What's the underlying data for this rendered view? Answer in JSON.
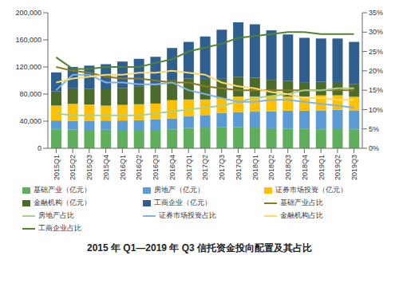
{
  "chart_data": {
    "type": "bar",
    "title": "2015 年 Q1—2019 年 Q3 信托资金投向配置及其占比",
    "stacked": true,
    "grid": false,
    "legend": "bottom",
    "categories": [
      "2015Q1",
      "2015Q2",
      "2015Q3",
      "2015Q4",
      "2016Q1",
      "2016Q2",
      "2016Q3",
      "2016Q4",
      "2017Q1",
      "2017Q2",
      "2017Q3",
      "2017Q4",
      "2018Q1",
      "2018Q2",
      "2018Q3",
      "2018Q4",
      "2019Q1",
      "2019Q2",
      "2019Q3"
    ],
    "ylim": [
      0,
      200000
    ],
    "yticks": [
      0,
      {
        "value": 40000,
        "label": "40,000"
      },
      {
        "value": 80000,
        "label": "80,000"
      },
      {
        "value": 120000,
        "label": "120,000"
      },
      {
        "value": 160000,
        "label": "160,000"
      },
      {
        "value": 200000,
        "label": "200,000"
      }
    ],
    "y2lim": [
      0,
      35
    ],
    "y2ticks": [
      {
        "value": 0,
        "label": "0%"
      },
      {
        "value": 5,
        "label": "5%"
      },
      {
        "value": 10,
        "label": "10%"
      },
      {
        "value": 15,
        "label": "15%"
      },
      {
        "value": 20,
        "label": "20%"
      },
      {
        "value": 25,
        "label": "25%"
      },
      {
        "value": 30,
        "label": "30%"
      },
      {
        "value": 35,
        "label": "35%"
      }
    ],
    "series": [
      {
        "name": "基础产业（亿元）",
        "type": "bar",
        "color": "#5fae5c",
        "values": [
          28000,
          27500,
          27000,
          27500,
          27000,
          27000,
          27000,
          28000,
          30000,
          30500,
          31500,
          31000,
          30500,
          29500,
          29000,
          28500,
          28000,
          28200,
          28000
        ]
      },
      {
        "name": "房地产（亿元）",
        "type": "bar",
        "color": "#5b9bd5",
        "values": [
          13000,
          13000,
          13000,
          13500,
          14000,
          14500,
          15500,
          16000,
          17000,
          18500,
          20500,
          22500,
          23500,
          25000,
          26500,
          27000,
          28000,
          28500,
          28000
        ]
      },
      {
        "name": "证券市场投资（亿元）",
        "type": "bar",
        "color": "#ffc000",
        "values": [
          22000,
          25000,
          24500,
          22000,
          23000,
          23500,
          23500,
          27000,
          25000,
          23000,
          22000,
          23000,
          22500,
          22000,
          21000,
          21000,
          22000,
          21500,
          20000
        ]
      },
      {
        "name": "金融机构（亿元）",
        "type": "bar",
        "color": "#4b6b2c",
        "values": [
          21000,
          23000,
          23000,
          24000,
          25000,
          26500,
          27500,
          30000,
          31000,
          30500,
          28500,
          29000,
          27500,
          24500,
          23000,
          21000,
          20000,
          19500,
          19000
        ]
      },
      {
        "name": "工商企业（亿元）",
        "type": "bar",
        "color": "#2f5f8f",
        "values": [
          28000,
          31500,
          34500,
          37000,
          39000,
          40500,
          41500,
          47000,
          54000,
          62500,
          72500,
          80500,
          79000,
          73000,
          68500,
          65500,
          64000,
          64300,
          62000
        ]
      },
      {
        "name": "基础产业占比",
        "type": "line",
        "axis": "y2",
        "color": "#8c7a1f",
        "values": [
          21,
          20,
          19.5,
          18.5,
          18,
          18,
          17.5,
          17,
          17,
          16,
          15.5,
          15,
          15,
          15,
          15,
          15,
          15,
          15,
          15
        ]
      },
      {
        "name": "房地产占比",
        "type": "line",
        "axis": "y2",
        "color": "#a9d18e",
        "values": [
          9,
          8.5,
          8.5,
          8.5,
          8.5,
          8.5,
          9,
          9.5,
          10,
          10.5,
          11,
          12,
          13,
          13.5,
          14,
          15,
          15,
          15.5,
          15.5
        ]
      },
      {
        "name": "证券市场投资占比",
        "type": "line",
        "axis": "y2",
        "color": "#7fb2e5",
        "values": [
          15,
          19,
          19,
          17,
          17,
          16.5,
          16.5,
          17,
          15,
          14,
          13,
          12,
          12,
          12.5,
          12.5,
          12,
          11.5,
          11,
          10.5
        ]
      },
      {
        "name": "金融机构占比",
        "type": "line",
        "axis": "y2",
        "color": "#ffd966",
        "values": [
          17,
          18,
          18.5,
          19,
          19,
          19.5,
          19.5,
          20,
          19.5,
          19,
          17,
          16,
          15.5,
          14.5,
          14,
          13,
          13,
          12.5,
          12.5
        ]
      },
      {
        "name": "工商企业占比",
        "type": "line",
        "axis": "y2",
        "color": "#548235",
        "values": [
          23.5,
          20.5,
          20.5,
          21,
          21,
          21,
          22,
          23,
          25,
          26,
          27,
          28.5,
          29,
          29.5,
          30,
          30,
          29.5,
          29.5,
          29.5
        ]
      }
    ]
  }
}
